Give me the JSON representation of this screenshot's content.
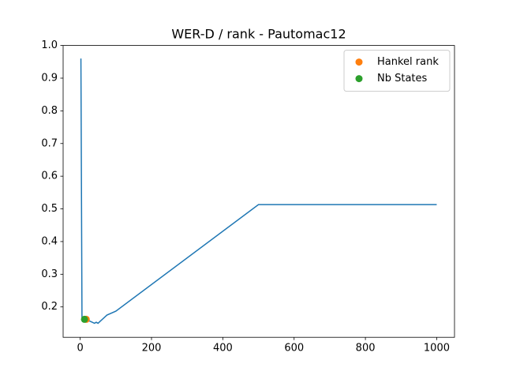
{
  "chart_data": {
    "type": "line",
    "title": "WER-D / rank - Pautomac12",
    "series": [
      {
        "color": "#1f77b4",
        "style": "line",
        "x": [
          2,
          5,
          10,
          15,
          20,
          30,
          40,
          45,
          50,
          75,
          100,
          500,
          1000
        ],
        "values": [
          0.96,
          0.165,
          0.163,
          0.162,
          0.16,
          0.155,
          0.15,
          0.153,
          0.15,
          0.175,
          0.187,
          0.513,
          0.513
        ]
      },
      {
        "name": "Hankel rank",
        "color": "#ff7f0e",
        "style": "marker",
        "x": [
          17
        ],
        "values": [
          0.162
        ]
      },
      {
        "name": "Nb States",
        "color": "#2ca02c",
        "style": "marker",
        "x": [
          12
        ],
        "values": [
          0.162
        ]
      }
    ],
    "xlim": [
      -47.9,
      1049.9
    ],
    "xticks": [
      0,
      200,
      400,
      600,
      800,
      1000
    ],
    "ylim": [
      0.107,
      1.0
    ],
    "yticks": [
      0.2,
      0.3,
      0.4,
      0.5,
      0.6,
      0.7,
      0.8,
      0.9,
      {
        "value": 1,
        "label": "1.0"
      }
    ],
    "legend": "upper right",
    "grid": false
  }
}
